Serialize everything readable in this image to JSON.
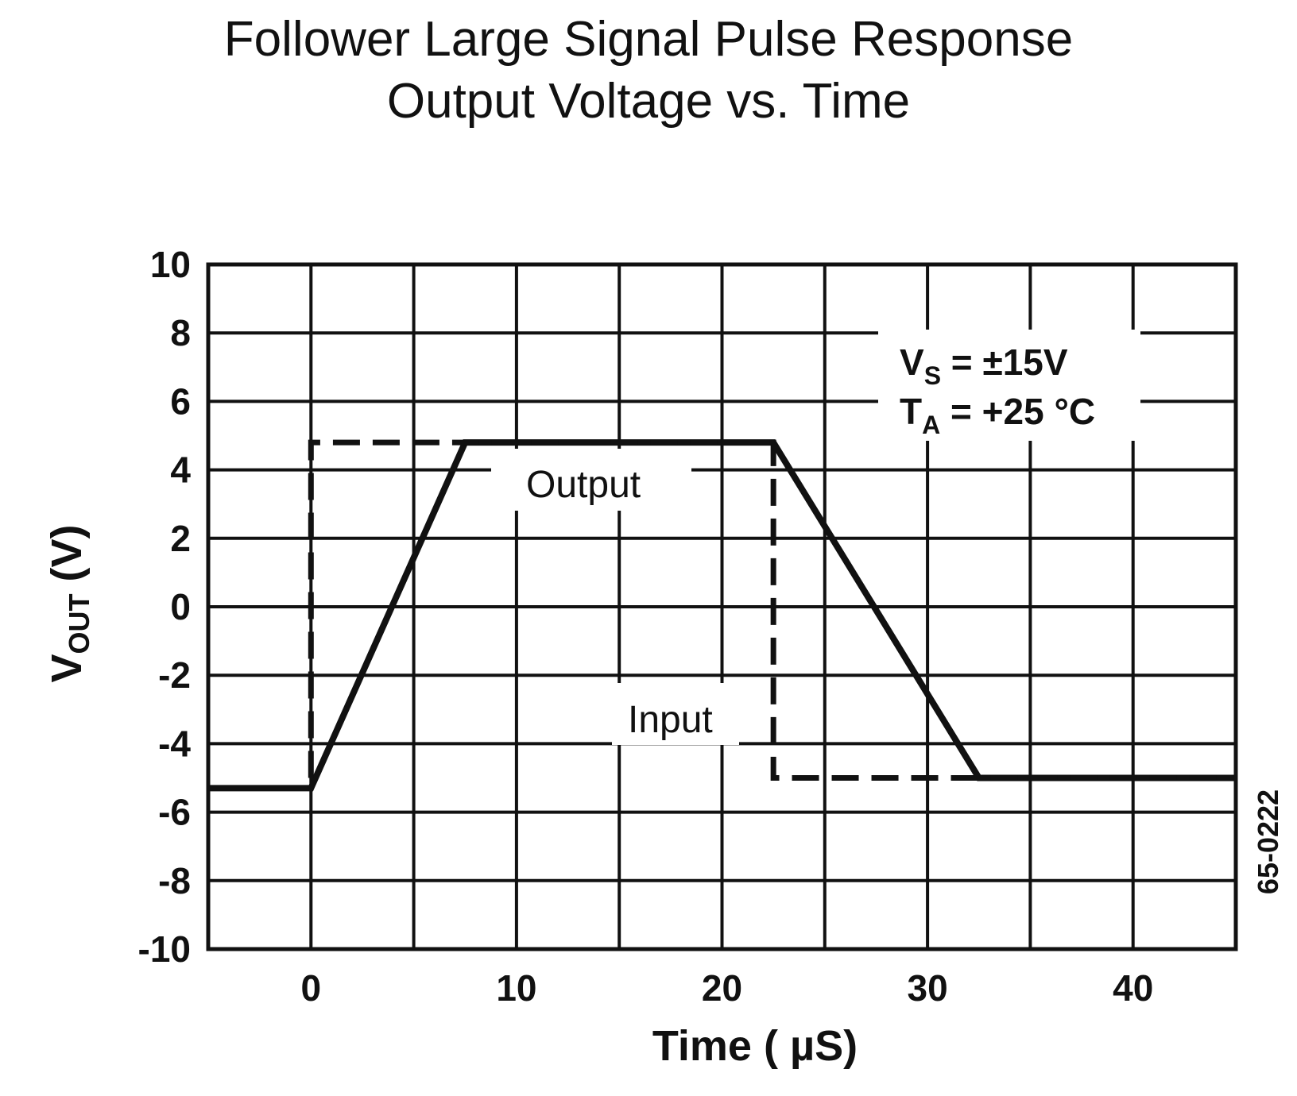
{
  "chart_data": {
    "type": "line",
    "title": "Follower Large Signal Pulse Response",
    "subtitle": "Output Voltage vs. Time",
    "xlabel": "Time ( µS)",
    "ylabel": {
      "main": "V",
      "sub": "OUT",
      "rest": " (V)"
    },
    "xlim": [
      -5,
      45
    ],
    "ylim": [
      -10,
      10
    ],
    "x_ticks": [
      0,
      10,
      20,
      30,
      40
    ],
    "y_ticks": [
      10,
      8,
      6,
      4,
      2,
      0,
      -2,
      -4,
      -6,
      -8,
      -10
    ],
    "grid": true,
    "series": [
      {
        "name": "Output",
        "style": "solid",
        "x": [
          -5,
          0,
          7.5,
          22.5,
          32.5,
          45
        ],
        "y": [
          -5.3,
          -5.3,
          4.8,
          4.8,
          -5.0,
          -5.0
        ]
      },
      {
        "name": "Input",
        "style": "dashed",
        "x": [
          0,
          0,
          22.5,
          22.5,
          45
        ],
        "y": [
          -5.0,
          4.8,
          4.8,
          -5.0,
          -5.0
        ]
      }
    ],
    "conditions": [
      {
        "sym": "V",
        "sub": "S",
        "text": " =  ±15V"
      },
      {
        "sym": "T",
        "sub": "A",
        "text": " =  +25 °C"
      }
    ],
    "code": "65-0222"
  }
}
